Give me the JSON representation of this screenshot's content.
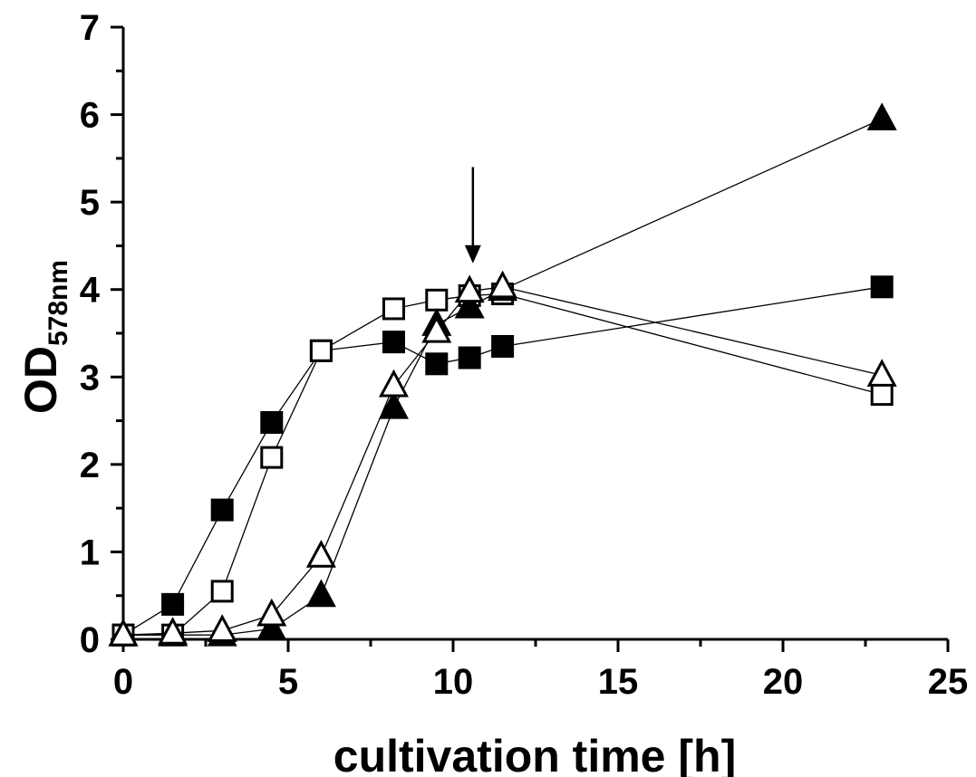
{
  "chart_data": {
    "type": "scatter",
    "title": "",
    "xlabel": "cultivation time [h]",
    "ylabel": {
      "main": "OD",
      "subscript": "578nm"
    },
    "xlim": [
      0,
      25
    ],
    "ylim": [
      0,
      7
    ],
    "xticks": [
      0,
      5,
      10,
      15,
      20,
      25
    ],
    "yticks": [
      0,
      1,
      2,
      3,
      4,
      5,
      6,
      7
    ],
    "grid": false,
    "legend": "none",
    "annotation": {
      "type": "arrow",
      "x": 10.6,
      "y_from": 5.4,
      "y_to": 4.3
    },
    "series": [
      {
        "marker": "square-filled",
        "x": [
          0,
          1.5,
          3,
          4.5,
          6,
          8.2,
          9.5,
          10.5,
          11.5,
          23
        ],
        "y": [
          0.05,
          0.4,
          1.48,
          2.48,
          3.3,
          3.4,
          3.15,
          3.22,
          3.35,
          4.03
        ]
      },
      {
        "marker": "square-open",
        "x": [
          0,
          1.5,
          3,
          4.5,
          6,
          8.2,
          9.5,
          10.5,
          11.5,
          23
        ],
        "y": [
          0.05,
          0.05,
          0.55,
          2.08,
          3.3,
          3.78,
          3.88,
          3.93,
          3.95,
          2.8
        ]
      },
      {
        "marker": "triangle-filled",
        "x": [
          0,
          1.5,
          3,
          4.5,
          6,
          8.2,
          9.5,
          10.5,
          11.5,
          23
        ],
        "y": [
          0.05,
          0.05,
          0.05,
          0.12,
          0.5,
          2.65,
          3.6,
          3.8,
          4.0,
          5.95
        ]
      },
      {
        "marker": "triangle-open",
        "x": [
          0,
          1.5,
          3,
          4.5,
          6,
          8.2,
          9.5,
          10.5,
          11.5,
          23
        ],
        "y": [
          0.05,
          0.07,
          0.1,
          0.28,
          0.95,
          2.9,
          3.52,
          3.98,
          4.03,
          3.02
        ]
      }
    ]
  }
}
